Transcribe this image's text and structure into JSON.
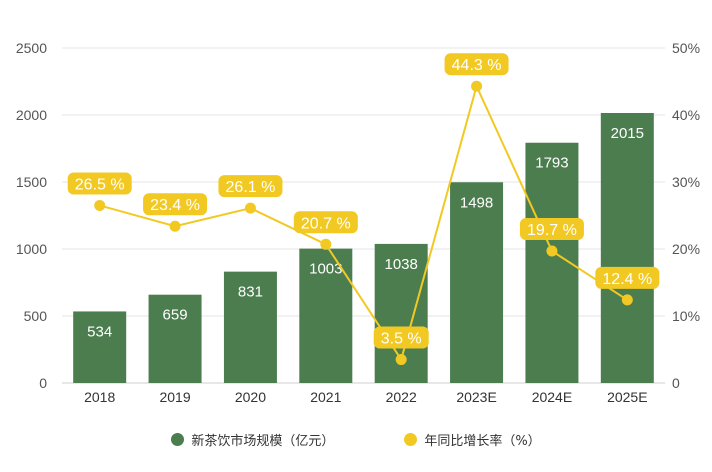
{
  "chart_data": {
    "type": "bar+line",
    "categories": [
      "2018",
      "2019",
      "2020",
      "2021",
      "2022",
      "2023E",
      "2024E",
      "2025E"
    ],
    "series": [
      {
        "name": "新茶饮市场规模（亿元）",
        "type": "bar",
        "axis": "left",
        "color": "#4b7d4f",
        "values": [
          534,
          659,
          831,
          1003,
          1038,
          1498,
          1793,
          2015
        ],
        "labels": [
          "534",
          "659",
          "831",
          "1003",
          "1038",
          "1498",
          "1793",
          "2015"
        ]
      },
      {
        "name": "年同比增长率（%）",
        "type": "line",
        "axis": "right",
        "color": "#f2c923",
        "values": [
          26.5,
          23.4,
          26.1,
          20.7,
          3.5,
          44.3,
          19.7,
          12.4
        ],
        "labels": [
          "26.5 %",
          "23.4 %",
          "26.1 %",
          "20.7 %",
          "3.5 %",
          "44.3 %",
          "19.7 %",
          "12.4 %"
        ]
      }
    ],
    "y_left": {
      "range": [
        0,
        2500
      ],
      "ticks": [
        "0",
        "500",
        "1000",
        "1500",
        "2000",
        "2500"
      ]
    },
    "y_right": {
      "range": [
        0,
        50
      ],
      "ticks": [
        "0",
        "10%",
        "20%",
        "30%",
        "40%",
        "50%"
      ]
    },
    "grid": true,
    "legend_position": "bottom"
  }
}
